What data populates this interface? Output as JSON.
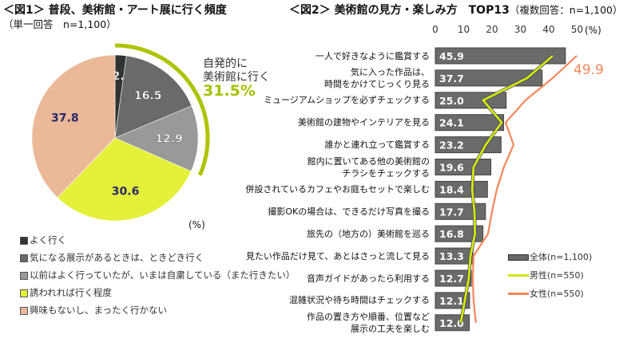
{
  "chart_data": [
    {
      "type": "pie",
      "title": "＜図1＞ 普段、美術館・アート展に行く頻度",
      "subtitle": "（単一回答　n=1,100）",
      "unit": "(%)",
      "slices": [
        {
          "label": "よく行く",
          "value": 2.2,
          "color": "#2f3430"
        },
        {
          "label": "気になる展示があるときは、ときどき行く",
          "value": 16.5,
          "color": "#686b68"
        },
        {
          "label": "以前はよく行っていたが、いまは自粛している（また行きたい）",
          "value": 12.9,
          "color": "#979a97"
        },
        {
          "label": "誘われれば行く程度",
          "value": 30.6,
          "color": "#e5f03a"
        },
        {
          "label": "興味もないし、まったく行かない",
          "value": 37.8,
          "color": "#ebb898"
        }
      ],
      "annotation": {
        "text1": "自発的に",
        "text2": "美術館に行く",
        "value": "31.5%",
        "color": "#a8c000"
      },
      "legend_position": "bottom"
    },
    {
      "type": "bar",
      "orientation": "horizontal",
      "title": "＜図2＞ 美術館の見方・楽しみ方　TOP13",
      "subtitle": "（複数回答：n=1,100）",
      "unit": "(%)",
      "xlim": [
        0,
        50
      ],
      "ticks": [
        "0",
        "10",
        "20",
        "30",
        "40",
        "50"
      ],
      "categories": [
        "一人で好きなように鑑賞する",
        "気に入った作品は、\n時間をかけてじっくり見る",
        "ミュージアムショップを必ずチェックする",
        "美術館の建物やインテリアを見る",
        "誰かと連れ立って鑑賞する",
        "館内に置いてある他の美術館の\nチラシをチェックする",
        "併設されているカフェやお庭もセットで楽しむ",
        "撮影OKの場合は、できるだけ写真を撮る",
        "旅先の（地方の）美術館を巡る",
        "見たい作品だけ見て、あとはさっと流して見る",
        "音声ガイドがあったら利用する",
        "混雑状況や待ち時間はチェックする",
        "作品の置き方や順番、位置など\n展示の工夫を楽しむ"
      ],
      "series": [
        {
          "name": "全体(n=1,100)",
          "type": "bar",
          "color": "#686b68",
          "values": [
            45.9,
            37.7,
            25.0,
            24.1,
            23.2,
            19.6,
            18.4,
            17.7,
            16.8,
            13.3,
            12.7,
            12.1,
            12.0
          ]
        },
        {
          "name": "男性(n=550)",
          "type": "line",
          "color": "#d4e600",
          "values": [
            41.4,
            32.4,
            16.9,
            23.4,
            17.8,
            13.5,
            13.0,
            13.8,
            14.0,
            12.4,
            11.8,
            10.4,
            9.0
          ]
        },
        {
          "name": "女性(n=550)",
          "type": "line",
          "color": "#f6865a",
          "values": [
            49.9,
            41.4,
            31.8,
            24.8,
            27.6,
            24.2,
            21.7,
            20.0,
            18.6,
            13.5,
            13.2,
            13.5,
            14.3
          ],
          "label": "49.9"
        }
      ],
      "legend_position": "bottom-right"
    }
  ]
}
